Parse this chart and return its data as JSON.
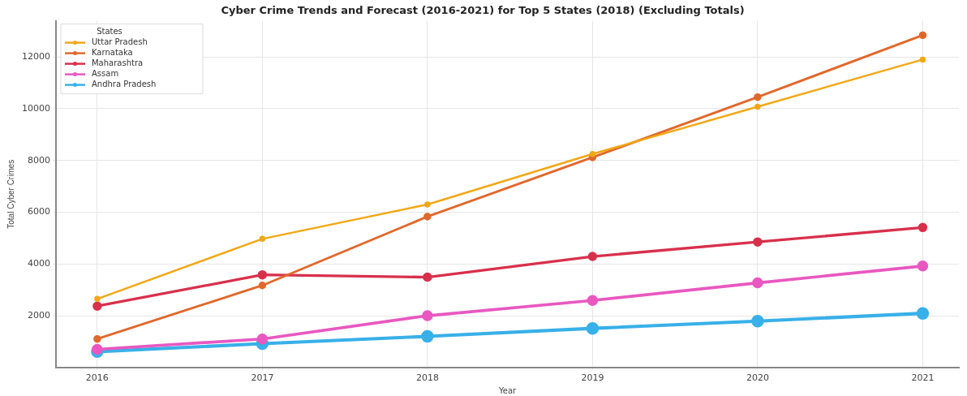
{
  "chart_data": {
    "type": "line",
    "title": "Cyber Crime Trends and Forecast (2016-2021) for Top 5 States (2018) (Excluding Totals)",
    "xlabel": "Year",
    "ylabel": "Total Cyber Crimes",
    "legend_title": "States",
    "x": [
      2016,
      2017,
      2018,
      2019,
      2020,
      2021
    ],
    "series": [
      {
        "name": "Uttar Pradesh",
        "color": "#f0a818",
        "values": [
          2650,
          4970,
          6300,
          8250,
          10080,
          11900
        ]
      },
      {
        "name": "Karnataka",
        "color": "#e0682c",
        "values": [
          1100,
          3170,
          5830,
          8120,
          10450,
          12840
        ]
      },
      {
        "name": "Maharashtra",
        "color": "#d8304c",
        "values": [
          2370,
          3580,
          3490,
          4290,
          4850,
          5410
        ]
      },
      {
        "name": "Assam",
        "color": "#e858c0",
        "values": [
          700,
          1100,
          2000,
          2590,
          3270,
          3920
        ]
      },
      {
        "name": "Andhra Pradesh",
        "color": "#38b0e8",
        "values": [
          610,
          920,
          1200,
          1510,
          1790,
          2090
        ]
      }
    ],
    "xlim": [
      2015.75,
      2021.22
    ],
    "xticks": [
      2016,
      2017,
      2018,
      2019,
      2020,
      2021
    ],
    "ylim": [
      0,
      13400
    ],
    "yticks": [
      2000,
      4000,
      6000,
      8000,
      10000,
      12000
    ],
    "grid": true,
    "legend": "top left",
    "marker": "circle",
    "line_style": "solid"
  }
}
